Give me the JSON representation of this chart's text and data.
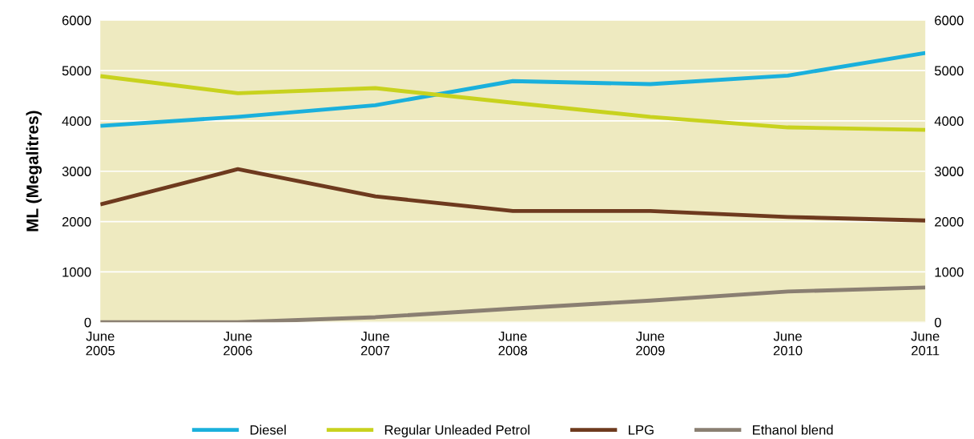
{
  "chart_data": {
    "type": "line",
    "ylabel": "ML (Megalitres)",
    "categories": [
      "June\n2005",
      "June\n2006",
      "June\n2007",
      "June\n2008",
      "June\n2009",
      "June\n2010",
      "June\n2011"
    ],
    "series": [
      {
        "name": "Diesel",
        "color": "#1ab0dc",
        "values": [
          3900,
          4080,
          4310,
          4790,
          4730,
          4900,
          5350
        ]
      },
      {
        "name": "Regular Unleaded Petrol",
        "color": "#c8d21e",
        "values": [
          4890,
          4550,
          4650,
          4360,
          4080,
          3870,
          3820
        ]
      },
      {
        "name": "LPG",
        "color": "#6e3a1e",
        "values": [
          2340,
          3040,
          2500,
          2210,
          2210,
          2090,
          2020
        ]
      },
      {
        "name": "Ethanol blend",
        "color": "#8a7f72",
        "values": [
          0,
          0,
          100,
          270,
          430,
          610,
          690
        ]
      }
    ],
    "ylim": [
      0,
      6000
    ],
    "yticks": [
      0,
      1000,
      2000,
      3000,
      4000,
      5000,
      6000
    ],
    "y2lim": [
      0,
      6000
    ],
    "y2ticks": [
      0,
      1000,
      2000,
      3000,
      4000,
      5000,
      6000
    ],
    "grid": "y",
    "legend": "bottom",
    "marker": "none",
    "line_style": "solid"
  }
}
